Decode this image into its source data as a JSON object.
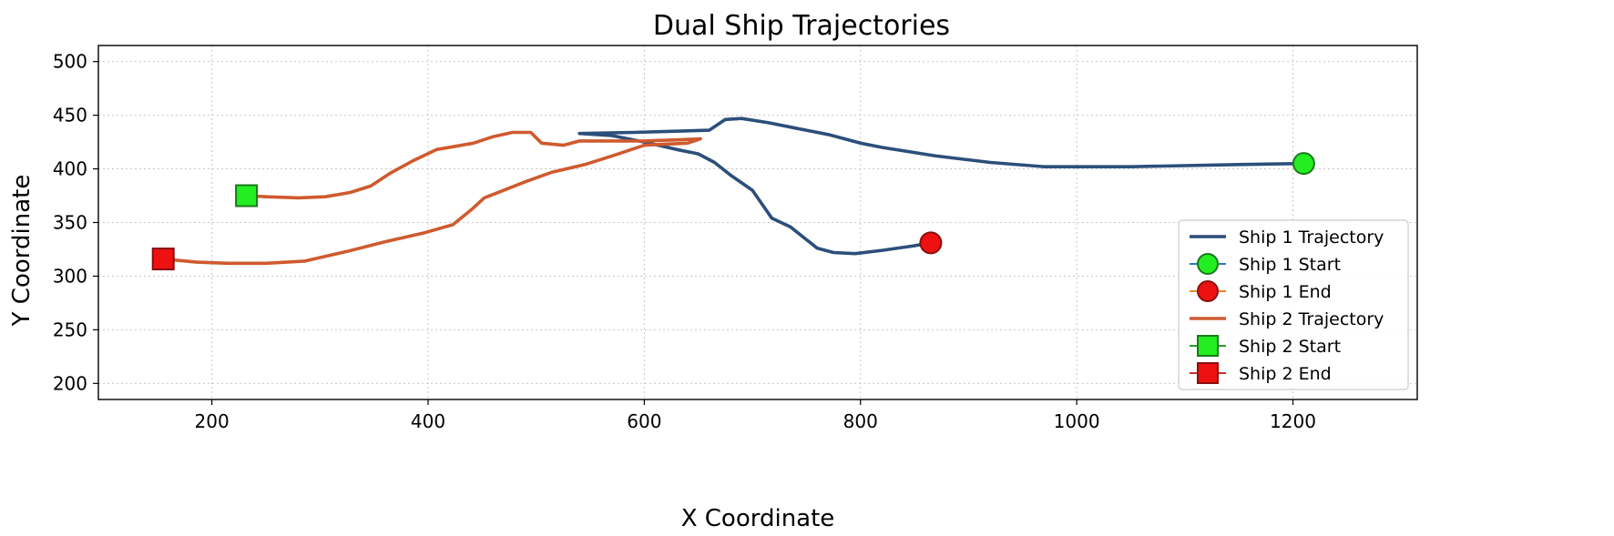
{
  "chart_data": {
    "type": "line",
    "title": "Dual Ship Trajectories",
    "xlabel": "X Coordinate",
    "ylabel": "Y Coordinate",
    "xlim": [
      95,
      1315
    ],
    "ylim": [
      185,
      515
    ],
    "xticks": [
      200,
      400,
      600,
      800,
      1000,
      1200
    ],
    "yticks": [
      200,
      250,
      300,
      350,
      400,
      450,
      500
    ],
    "grid": true,
    "legend_position": "lower-right",
    "colors": {
      "ship1": "#2b4f7a",
      "ship2": "#cf5a2e",
      "start_fill": "#22ee22",
      "start_edge": "#1a7a1a",
      "end_fill": "#ee1111",
      "end_edge": "#8a0f0f"
    },
    "series": [
      {
        "name": "Ship 1 Trajectory",
        "color": "#2b4f7a",
        "points": [
          [
            1210,
            405
          ],
          [
            1150,
            404
          ],
          [
            1050,
            402
          ],
          [
            970,
            402
          ],
          [
            920,
            406
          ],
          [
            870,
            412
          ],
          [
            820,
            420
          ],
          [
            800,
            424
          ],
          [
            770,
            432
          ],
          [
            740,
            438
          ],
          [
            715,
            443
          ],
          [
            690,
            447
          ],
          [
            675,
            446
          ],
          [
            660,
            436
          ],
          [
            625,
            435
          ],
          [
            590,
            434
          ],
          [
            540,
            433
          ],
          [
            570,
            431
          ],
          [
            600,
            425
          ],
          [
            630,
            418
          ],
          [
            650,
            414
          ],
          [
            665,
            406
          ],
          [
            680,
            394
          ],
          [
            700,
            380
          ],
          [
            718,
            354
          ],
          [
            735,
            346
          ],
          [
            760,
            326
          ],
          [
            775,
            322
          ],
          [
            795,
            321
          ],
          [
            820,
            324
          ],
          [
            848,
            328
          ],
          [
            865,
            331
          ]
        ]
      },
      {
        "name": "Ship 2 Trajectory",
        "color": "#cf5a2e",
        "points": [
          [
            232,
            375
          ],
          [
            250,
            374
          ],
          [
            280,
            373
          ],
          [
            305,
            374
          ],
          [
            328,
            378
          ],
          [
            347,
            384
          ],
          [
            365,
            396
          ],
          [
            385,
            407
          ],
          [
            408,
            418
          ],
          [
            425,
            421
          ],
          [
            442,
            424
          ],
          [
            460,
            430
          ],
          [
            478,
            434
          ],
          [
            495,
            434
          ],
          [
            505,
            424
          ],
          [
            525,
            422
          ],
          [
            540,
            426
          ],
          [
            565,
            426
          ],
          [
            600,
            426
          ],
          [
            630,
            427
          ],
          [
            652,
            428
          ],
          [
            640,
            424
          ],
          [
            600,
            422
          ],
          [
            570,
            412
          ],
          [
            545,
            404
          ],
          [
            515,
            397
          ],
          [
            490,
            388
          ],
          [
            470,
            380
          ],
          [
            452,
            373
          ],
          [
            440,
            362
          ],
          [
            423,
            348
          ],
          [
            395,
            340
          ],
          [
            360,
            332
          ],
          [
            325,
            323
          ],
          [
            286,
            314
          ],
          [
            250,
            312
          ],
          [
            215,
            312
          ],
          [
            186,
            313
          ],
          [
            155,
            316
          ]
        ]
      }
    ],
    "markers": [
      {
        "name": "Ship 1 Start",
        "shape": "circle",
        "x": 1210,
        "y": 405
      },
      {
        "name": "Ship 1 End",
        "shape": "circle",
        "x": 865,
        "y": 331
      },
      {
        "name": "Ship 2 Start",
        "shape": "square",
        "x": 232,
        "y": 375
      },
      {
        "name": "Ship 2 End",
        "shape": "square",
        "x": 155,
        "y": 316
      }
    ],
    "legend": [
      {
        "label": "Ship 1 Trajectory",
        "kind": "line",
        "color": "#2b4f7a"
      },
      {
        "label": "Ship 1 Start",
        "kind": "circle",
        "line": "#2b78b8",
        "fill": "#22ee22",
        "edge": "#1a7a1a"
      },
      {
        "label": "Ship 1 End",
        "kind": "circle",
        "line": "#e8872a",
        "fill": "#ee1111",
        "edge": "#8a0f0f"
      },
      {
        "label": "Ship 2 Trajectory",
        "kind": "line",
        "color": "#cf5a2e"
      },
      {
        "label": "Ship 2 Start",
        "kind": "square",
        "line": "#2a9a2a",
        "fill": "#22ee22",
        "edge": "#1a7a1a"
      },
      {
        "label": "Ship 2 End",
        "kind": "square",
        "line": "#cc2a2a",
        "fill": "#ee1111",
        "edge": "#8a0f0f"
      }
    ]
  }
}
